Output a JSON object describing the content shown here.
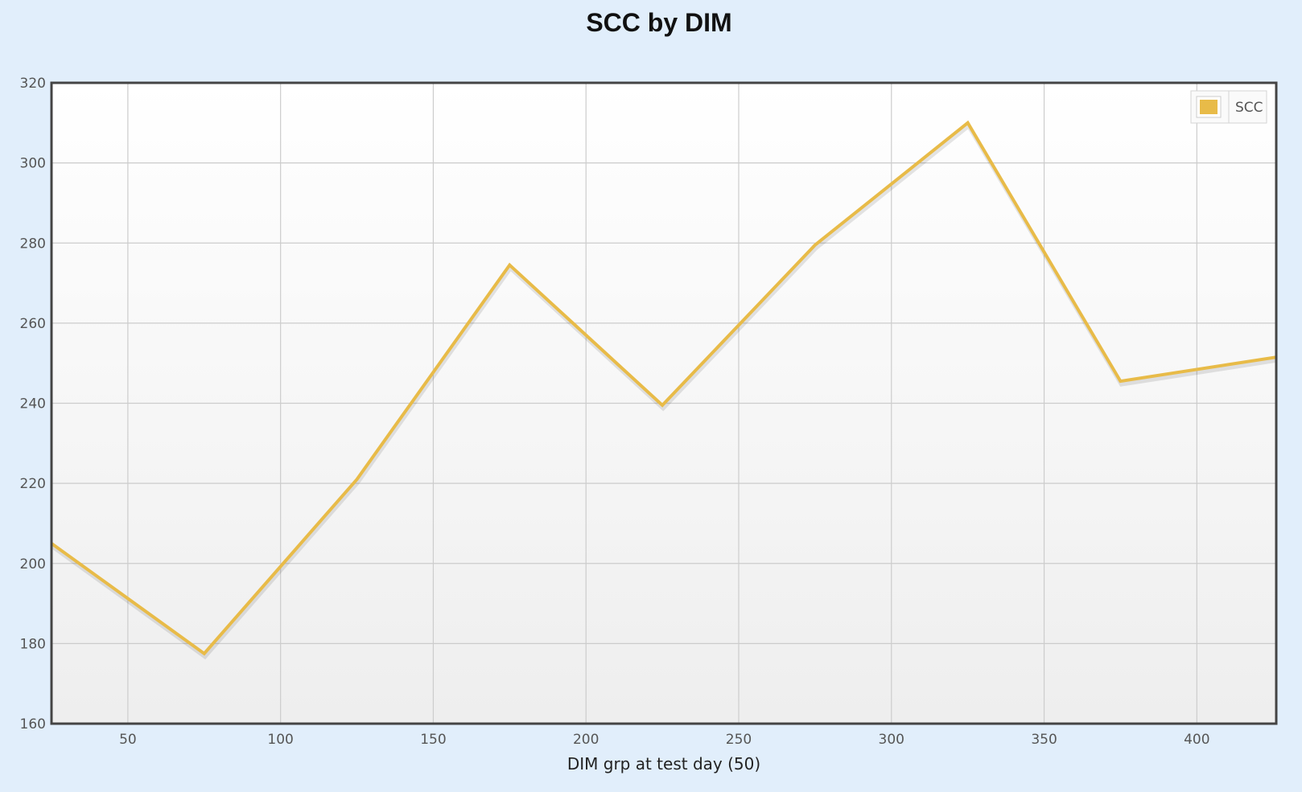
{
  "chart_data": {
    "type": "line",
    "title": "SCC by DIM",
    "xlabel": "DIM grp at test day (50)",
    "ylabel": "",
    "xlim": [
      25,
      426
    ],
    "ylim": [
      160,
      320
    ],
    "x_ticks": [
      50,
      100,
      150,
      200,
      250,
      300,
      350,
      400
    ],
    "y_ticks": [
      160,
      180,
      200,
      220,
      240,
      260,
      280,
      300,
      320
    ],
    "grid": true,
    "legend_position": "top-right",
    "series": [
      {
        "name": "SCC",
        "color": "#e8bb48",
        "x": [
          25,
          75,
          125,
          175,
          225,
          275,
          325,
          375,
          426
        ],
        "y": [
          205,
          177.5,
          221,
          274.5,
          239.5,
          279.5,
          310,
          245.5,
          251.5
        ]
      }
    ]
  },
  "colors": {
    "page_background": "#e1eefb",
    "plot_background_top": "#ffffff",
    "plot_background_bottom": "#eeeeee",
    "frame": "#444444",
    "grid": "#cccccc"
  }
}
